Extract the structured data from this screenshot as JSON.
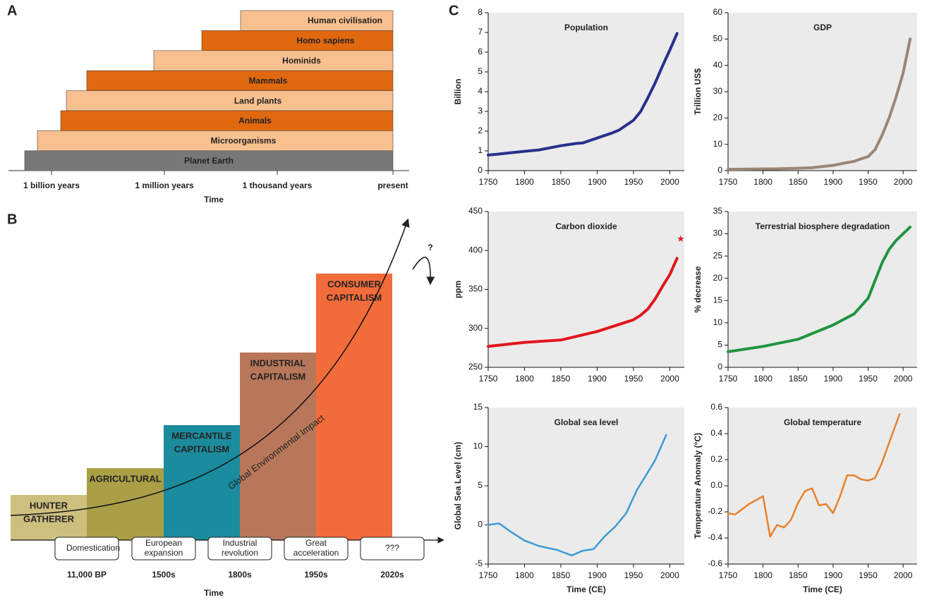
{
  "panel_labels": [
    "A",
    "B",
    "C"
  ],
  "timeline": {
    "rows": [
      "Human civilisation",
      "Homo sapiens",
      "Hominids",
      "Mammals",
      "Land plants",
      "Animals",
      "Microorganisms",
      "Planet Earth"
    ],
    "axis_labels": [
      "1 billion years",
      "1 million years",
      "1 thousand years",
      "present"
    ],
    "axis_title": "Time"
  },
  "eras": {
    "stages": [
      [
        "HUNTER",
        "GATHERER"
      ],
      [
        "AGRICULTURAL"
      ],
      [
        "MERCANTILE",
        "CAPITALISM"
      ],
      [
        "INDUSTRIAL",
        "CAPITALISM"
      ],
      [
        "CONSUMER",
        "CAPITALISM"
      ]
    ],
    "transitions": [
      [
        "Domestication"
      ],
      [
        "European",
        "expansion"
      ],
      [
        "Industrial",
        "revolution"
      ],
      [
        "Great",
        "acceleration"
      ],
      [
        "???"
      ]
    ],
    "axis_labels": [
      "11,000 BP",
      "1500s",
      "1800s",
      "1950s",
      "2020s"
    ],
    "axis_title": "Time",
    "curve_label": "Global Environmental Impact",
    "question": "?"
  },
  "chart_data": [
    {
      "type": "line",
      "title": "Population",
      "y_label": "Billion",
      "color": "#27318b",
      "x": [
        1750,
        1760,
        1780,
        1800,
        1820,
        1850,
        1870,
        1880,
        1900,
        1920,
        1930,
        1950,
        1960,
        1970,
        1980,
        1990,
        2000,
        2010
      ],
      "values": [
        0.79,
        0.82,
        0.9,
        0.98,
        1.05,
        1.26,
        1.37,
        1.4,
        1.65,
        1.9,
        2.05,
        2.55,
        3.0,
        3.7,
        4.45,
        5.3,
        6.1,
        6.95
      ],
      "xlim": [
        1750,
        2020
      ],
      "xticks": [
        1750,
        1800,
        1850,
        1900,
        1950,
        2000
      ],
      "ylim": [
        0,
        8
      ],
      "yticks": [
        0,
        1,
        2,
        3,
        4,
        5,
        6,
        7,
        8
      ]
    },
    {
      "type": "line",
      "title": "GDP",
      "y_label": "Trillion US$",
      "color": "#9a8677",
      "x": [
        1750,
        1820,
        1850,
        1870,
        1900,
        1913,
        1930,
        1940,
        1950,
        1960,
        1970,
        1980,
        1990,
        2000,
        2010
      ],
      "values": [
        0.5,
        0.7,
        0.9,
        1.1,
        2,
        2.7,
        3.5,
        4.5,
        5.3,
        8,
        13.5,
        20,
        28,
        37,
        50
      ],
      "xlim": [
        1750,
        2020
      ],
      "xticks": [
        1750,
        1800,
        1850,
        1900,
        1950,
        2000
      ],
      "ylim": [
        0,
        60
      ],
      "yticks": [
        0,
        10,
        20,
        30,
        40,
        50,
        60
      ]
    },
    {
      "type": "line",
      "title": "Carbon dioxide",
      "y_label": "ppm",
      "color": "#e3141c",
      "x": [
        1750,
        1800,
        1850,
        1900,
        1950,
        1960,
        1970,
        1980,
        1990,
        2000,
        2010
      ],
      "values": [
        277,
        282,
        285,
        296,
        311,
        317,
        325,
        338,
        354,
        369,
        390
      ],
      "points": [
        {
          "x": 2015,
          "value": 415
        }
      ],
      "xlim": [
        1750,
        2020
      ],
      "xticks": [
        1750,
        1800,
        1850,
        1900,
        1950,
        2000
      ],
      "ylim": [
        250,
        450
      ],
      "yticks": [
        250,
        300,
        350,
        400,
        450
      ]
    },
    {
      "type": "line",
      "title": "Terrestrial biosphere degradation",
      "y_label": "% decrease",
      "color": "#1f9540",
      "x": [
        1750,
        1800,
        1850,
        1900,
        1930,
        1950,
        1960,
        1970,
        1980,
        1990,
        2000,
        2010
      ],
      "values": [
        3.5,
        4.7,
        6.3,
        9.5,
        12,
        15.5,
        19.5,
        23.5,
        26.5,
        28.5,
        30,
        31.5
      ],
      "xlim": [
        1750,
        2020
      ],
      "xticks": [
        1750,
        1800,
        1850,
        1900,
        1950,
        2000
      ],
      "ylim": [
        0,
        35
      ],
      "yticks": [
        0,
        5,
        10,
        15,
        20,
        25,
        30,
        35
      ]
    },
    {
      "type": "line",
      "title": "Global sea level",
      "y_label": "Global Sea Level (cm)",
      "x_label": "Time (CE)",
      "color": "#3b9bd3",
      "x": [
        1750,
        1765,
        1780,
        1800,
        1820,
        1845,
        1865,
        1880,
        1895,
        1910,
        1925,
        1940,
        1955,
        1965,
        1980,
        1995
      ],
      "values": [
        0,
        0.2,
        -0.8,
        -2,
        -2.7,
        -3.2,
        -3.9,
        -3.3,
        -3.1,
        -1.5,
        -0.2,
        1.5,
        4.5,
        6,
        8.3,
        11.5
      ],
      "xlim": [
        1750,
        2020
      ],
      "xticks": [
        1750,
        1800,
        1850,
        1900,
        1950,
        2000
      ],
      "ylim": [
        -5,
        15
      ],
      "yticks": [
        -5,
        0,
        5,
        10,
        15
      ]
    },
    {
      "type": "line",
      "title": "Global temperature",
      "y_label": "Temperature Anomaly (°C)",
      "x_label": "Time (CE)",
      "color": "#e8812a",
      "x": [
        1750,
        1760,
        1770,
        1780,
        1790,
        1800,
        1810,
        1820,
        1830,
        1840,
        1850,
        1860,
        1870,
        1880,
        1890,
        1900,
        1910,
        1920,
        1930,
        1940,
        1950,
        1960,
        1970,
        1980,
        1995
      ],
      "values": [
        -0.21,
        -0.22,
        -0.18,
        -0.14,
        -0.11,
        -0.08,
        -0.39,
        -0.3,
        -0.32,
        -0.26,
        -0.13,
        -0.04,
        -0.02,
        -0.15,
        -0.14,
        -0.21,
        -0.08,
        0.08,
        0.08,
        0.05,
        0.04,
        0.06,
        0.18,
        0.33,
        0.55
      ],
      "xlim": [
        1750,
        2020
      ],
      "xticks": [
        1750,
        1800,
        1850,
        1900,
        1950,
        2000
      ],
      "ylim": [
        -0.6,
        0.6
      ],
      "yticks": [
        -0.6,
        -0.4,
        -0.2,
        {
          "value": 0,
          "label": "0.0"
        },
        0.2,
        0.4,
        0.6
      ]
    }
  ]
}
